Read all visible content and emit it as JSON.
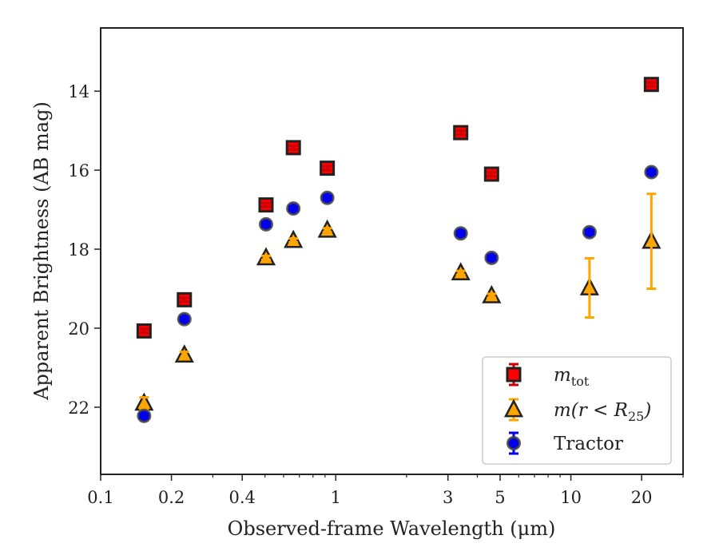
{
  "chart_data": {
    "type": "scatter",
    "xlabel": "Observed-frame Wavelength (μm)",
    "ylabel": "Apparent Brightness (AB mag)",
    "xscale": "log",
    "xlim": [
      0.1,
      30
    ],
    "ylim": [
      23.7,
      12.4
    ],
    "y_inverted": true,
    "x_ticks": [
      {
        "value": 0.1,
        "label": "0.1"
      },
      {
        "value": 0.2,
        "label": "0.2"
      },
      {
        "value": 0.4,
        "label": "0.4"
      },
      {
        "value": 1,
        "label": "1"
      },
      {
        "value": 3,
        "label": "3"
      },
      {
        "value": 5,
        "label": "5"
      },
      {
        "value": 10,
        "label": "10"
      },
      {
        "value": 20,
        "label": "20"
      }
    ],
    "x_minor_ticks": [
      0.3,
      0.5,
      0.6,
      0.7,
      0.8,
      0.9,
      2,
      4,
      6,
      7,
      8,
      9,
      30
    ],
    "y_ticks": [
      {
        "value": 14,
        "label": "14"
      },
      {
        "value": 16,
        "label": "16"
      },
      {
        "value": 18,
        "label": "18"
      },
      {
        "value": 20,
        "label": "20"
      },
      {
        "value": 22,
        "label": "22"
      }
    ],
    "grid": false,
    "legend_position": "lower-right",
    "series": [
      {
        "name": "m_tot",
        "label_main": "m",
        "label_sub": "tot",
        "marker": "square",
        "fill": "#ff0000",
        "edge": "#222222",
        "errcolor": "#cc0000",
        "points": [
          {
            "x": 0.153,
            "y": 20.07,
            "err": 0.05
          },
          {
            "x": 0.227,
            "y": 19.28,
            "err": 0.05
          },
          {
            "x": 0.505,
            "y": 16.88,
            "err": 0.05
          },
          {
            "x": 0.66,
            "y": 15.43,
            "err": 0.05
          },
          {
            "x": 0.92,
            "y": 15.95,
            "err": 0.05
          },
          {
            "x": 3.4,
            "y": 15.05,
            "err": 0.05
          },
          {
            "x": 4.6,
            "y": 16.1,
            "err": 0.05
          },
          {
            "x": 22.0,
            "y": 13.83,
            "err": 0.05
          }
        ]
      },
      {
        "name": "m(r < R25)",
        "label_main": "m(r < R",
        "label_sub": "25",
        "label_end": ")",
        "marker": "triangle",
        "fill": "#ffa500",
        "edge": "#222222",
        "errcolor": "#ffa500",
        "points": [
          {
            "x": 0.153,
            "y": 21.9,
            "err": 0.15
          },
          {
            "x": 0.227,
            "y": 20.68,
            "err": 0.08
          },
          {
            "x": 0.505,
            "y": 18.22,
            "err": 0.05
          },
          {
            "x": 0.66,
            "y": 17.78,
            "err": 0.05
          },
          {
            "x": 0.92,
            "y": 17.52,
            "err": 0.05
          },
          {
            "x": 3.4,
            "y": 18.6,
            "err": 0.05
          },
          {
            "x": 4.6,
            "y": 19.18,
            "err": 0.05
          },
          {
            "x": 12.0,
            "y": 18.98,
            "err": 0.75
          },
          {
            "x": 22.0,
            "y": 17.8,
            "err": 1.2
          }
        ]
      },
      {
        "name": "Tractor",
        "label_main": "Tractor",
        "marker": "circle",
        "fill": "#0000ee",
        "edge": "#444444",
        "errcolor": "#0000ee",
        "points": [
          {
            "x": 0.153,
            "y": 22.22,
            "err": 0.05
          },
          {
            "x": 0.227,
            "y": 19.77,
            "err": 0.05
          },
          {
            "x": 0.505,
            "y": 17.37,
            "err": 0.05
          },
          {
            "x": 0.66,
            "y": 16.97,
            "err": 0.05
          },
          {
            "x": 0.92,
            "y": 16.7,
            "err": 0.05
          },
          {
            "x": 3.4,
            "y": 17.6,
            "err": 0.05
          },
          {
            "x": 4.6,
            "y": 18.22,
            "err": 0.05
          },
          {
            "x": 12.0,
            "y": 17.57,
            "err": 0.05
          },
          {
            "x": 22.0,
            "y": 16.05,
            "err": 0.05
          }
        ]
      }
    ]
  }
}
